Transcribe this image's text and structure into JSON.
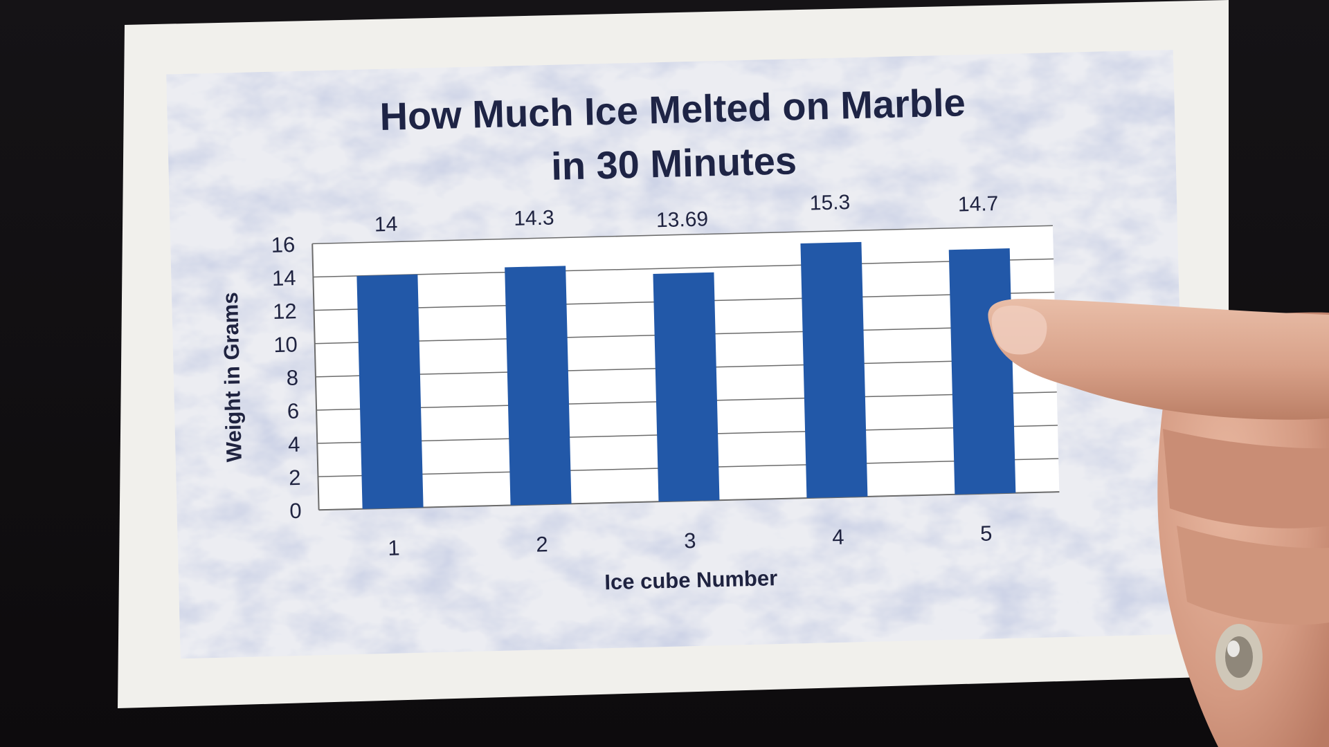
{
  "chart_data": {
    "type": "bar",
    "title_line1": "How Much Ice Melted on Marble",
    "title_line2": "in 30 Minutes",
    "xlabel": "Ice cube Number",
    "ylabel": "Weight in Grams",
    "categories": [
      "1",
      "2",
      "3",
      "4",
      "5"
    ],
    "values": [
      14,
      14.3,
      13.69,
      15.3,
      14.7
    ],
    "value_labels": [
      "14",
      "14.3",
      "13.69",
      "15.3",
      "14.7"
    ],
    "ylim": [
      0,
      16
    ],
    "yticks": [
      "0",
      "2",
      "4",
      "6",
      "8",
      "10",
      "12",
      "14",
      "16"
    ],
    "grid": true,
    "legend": "none",
    "bar_color": "#2258a8"
  }
}
